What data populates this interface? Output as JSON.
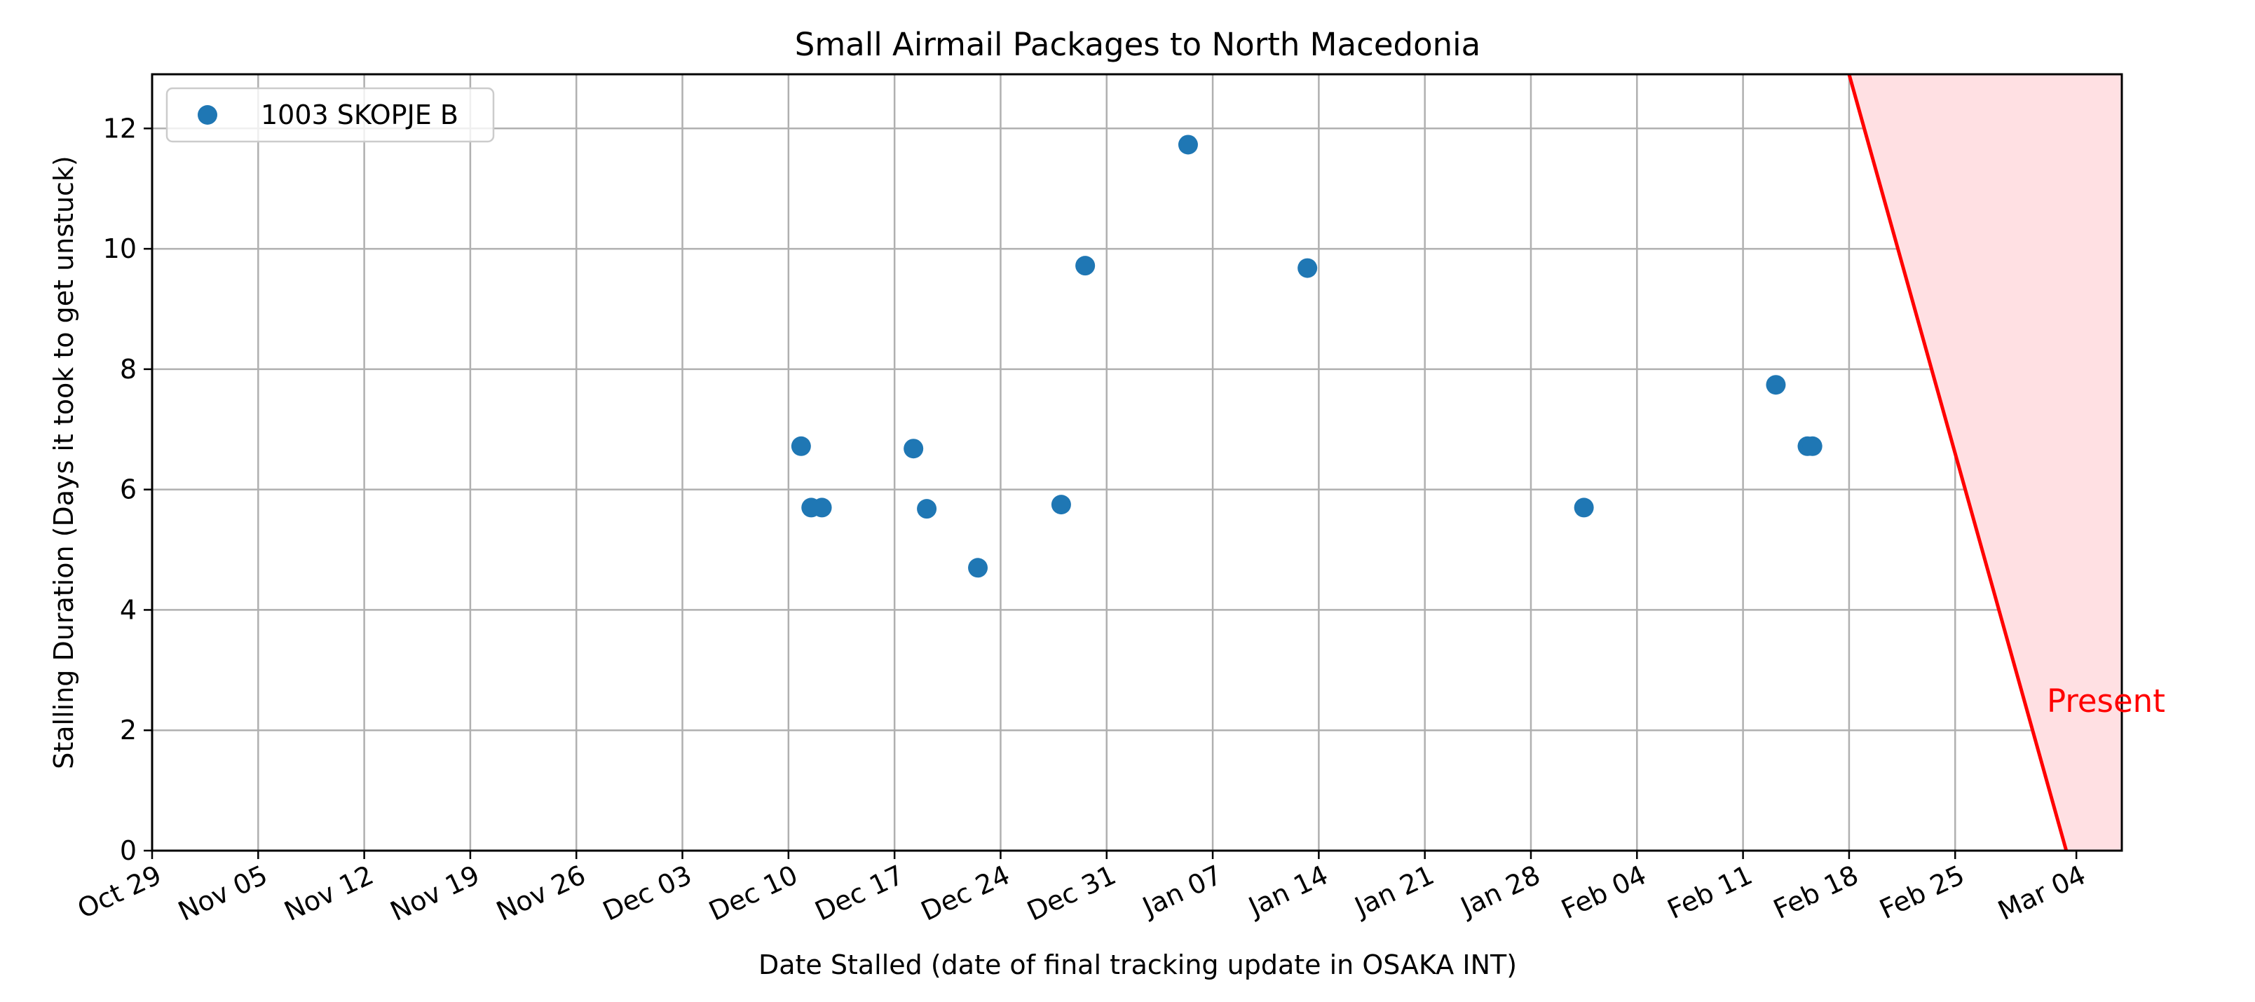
{
  "chart_data": {
    "type": "scatter",
    "title": "Small Airmail Packages to North Macedonia",
    "xlabel": "Date Stalled (date of final tracking update in OSAKA INT)",
    "ylabel": "Stalling Duration (Days it took to get unstuck)",
    "xlim": [
      "2023-10-29",
      "2024-03-07"
    ],
    "ylim": [
      0,
      12.9
    ],
    "grid": true,
    "legend_position": "upper-left",
    "x_ticks": [
      {
        "date": "2023-10-29",
        "label": "Oct 29"
      },
      {
        "date": "2023-11-05",
        "label": "Nov 05"
      },
      {
        "date": "2023-11-12",
        "label": "Nov 12"
      },
      {
        "date": "2023-11-19",
        "label": "Nov 19"
      },
      {
        "date": "2023-11-26",
        "label": "Nov 26"
      },
      {
        "date": "2023-12-03",
        "label": "Dec 03"
      },
      {
        "date": "2023-12-10",
        "label": "Dec 10"
      },
      {
        "date": "2023-12-17",
        "label": "Dec 17"
      },
      {
        "date": "2023-12-24",
        "label": "Dec 24"
      },
      {
        "date": "2023-12-31",
        "label": "Dec 31"
      },
      {
        "date": "2024-01-07",
        "label": "Jan 07"
      },
      {
        "date": "2024-01-14",
        "label": "Jan 14"
      },
      {
        "date": "2024-01-21",
        "label": "Jan 21"
      },
      {
        "date": "2024-01-28",
        "label": "Jan 28"
      },
      {
        "date": "2024-02-04",
        "label": "Feb 04"
      },
      {
        "date": "2024-02-11",
        "label": "Feb 11"
      },
      {
        "date": "2024-02-18",
        "label": "Feb 18"
      },
      {
        "date": "2024-02-25",
        "label": "Feb 25"
      },
      {
        "date": "2024-03-04",
        "label": "Mar 04"
      }
    ],
    "y_ticks": [
      0,
      2,
      4,
      6,
      8,
      10,
      12
    ],
    "series": [
      {
        "name": "1003 SKOPJE B",
        "color": "#1f77b4",
        "points": [
          {
            "x": "2023-12-10T20:00",
            "y": 6.72
          },
          {
            "x": "2023-12-11T12:00",
            "y": 5.7
          },
          {
            "x": "2023-12-12T05:00",
            "y": 5.7
          },
          {
            "x": "2023-12-18T06:00",
            "y": 6.68
          },
          {
            "x": "2023-12-19T03:00",
            "y": 5.68
          },
          {
            "x": "2023-12-22T12:00",
            "y": 4.7
          },
          {
            "x": "2023-12-28T00:00",
            "y": 5.75
          },
          {
            "x": "2023-12-29T14:00",
            "y": 9.72
          },
          {
            "x": "2024-01-05T09:00",
            "y": 11.73
          },
          {
            "x": "2024-01-13T06:00",
            "y": 9.68
          },
          {
            "x": "2024-01-31T12:00",
            "y": 5.7
          },
          {
            "x": "2024-02-13T04:00",
            "y": 7.74
          },
          {
            "x": "2024-02-15T06:00",
            "y": 6.72
          },
          {
            "x": "2024-02-15T14:00",
            "y": 6.72
          }
        ]
      }
    ],
    "present_line": {
      "label": "Present",
      "color": "#ff0000",
      "fill_color": "#ffe0e3",
      "from": {
        "x": "2024-02-18",
        "y": 12.9
      },
      "to": {
        "x": "2024-03-03T08:00",
        "y": 0
      }
    }
  }
}
